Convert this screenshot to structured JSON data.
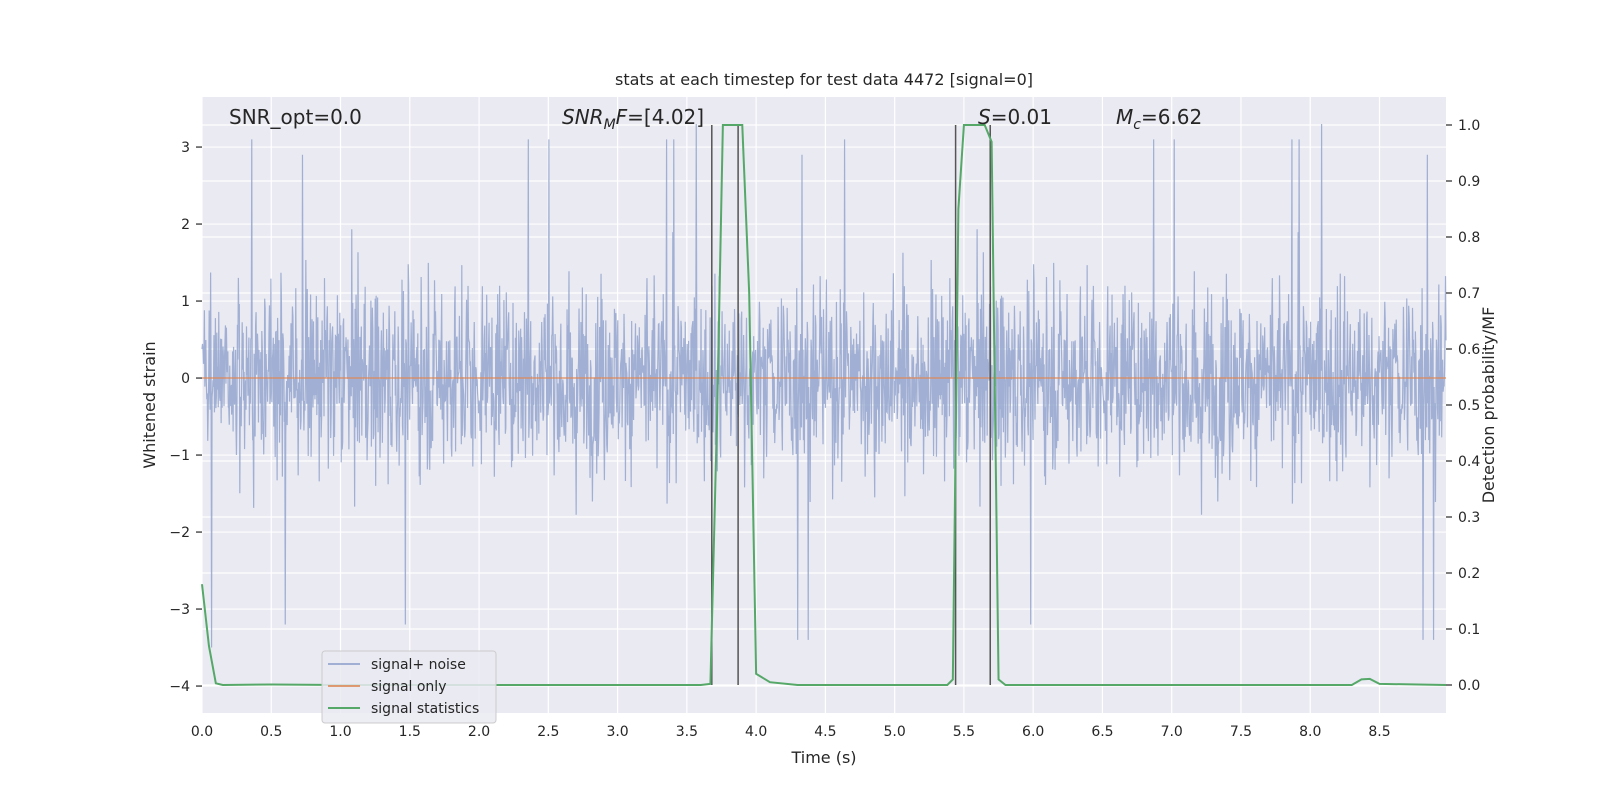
{
  "chart_data": {
    "type": "line",
    "title": "stats at each timestep for test data 4472 [signal=0]",
    "xlabel": "Time (s)",
    "ylabel_left": "Whitened strain",
    "ylabel_right": "Detection probability/MF",
    "xlim": [
      0.0,
      8.98
    ],
    "ylim_left": [
      -4.35,
      3.65
    ],
    "ylim_right": [
      -0.05,
      1.05
    ],
    "grid": true,
    "legend_position": "lower-left",
    "x_ticks": [
      "0.0",
      "0.5",
      "1.0",
      "1.5",
      "2.0",
      "2.5",
      "3.0",
      "3.5",
      "4.0",
      "4.5",
      "5.0",
      "5.5",
      "6.0",
      "6.5",
      "7.0",
      "7.5",
      "8.0",
      "8.5"
    ],
    "y_left_ticks": [
      "3",
      "2",
      "1",
      "0",
      "−1",
      "−2",
      "−3",
      "−4"
    ],
    "y_right_ticks": [
      "1.0",
      "0.9",
      "0.8",
      "0.7",
      "0.6",
      "0.5",
      "0.4",
      "0.3",
      "0.2",
      "0.1",
      "0.0"
    ],
    "annotations": {
      "snr_opt": "SNR_opt=0.0",
      "snr_mf_sym": "SNR",
      "snr_mf_sub": "M",
      "snr_mf_mid": "F",
      "snr_mf_val": "=[4.02]",
      "s_sym": "S",
      "s_val": "=0.01",
      "mc_sym": "M",
      "mc_sub": "c",
      "mc_val": "=6.62"
    },
    "series": [
      {
        "name": "signal+ noise",
        "color": "#8da0cb",
        "kind": "noise",
        "amplitude_envelope": [
          -2.0,
          2.0
        ],
        "spikes_high": [
          3.3,
          3.1,
          2.9,
          2.7
        ],
        "spikes_low": [
          -3.4,
          -3.5,
          -3.2,
          -4.0
        ]
      },
      {
        "name": "signal only",
        "color": "#dd8452",
        "kind": "constant",
        "y": [
          0.0,
          0.0
        ]
      },
      {
        "name": "signal statistics",
        "color": "#55a868",
        "kind": "line",
        "axis": "right",
        "x": [
          0.0,
          0.05,
          0.1,
          0.15,
          0.5,
          1.0,
          2.0,
          3.0,
          3.6,
          3.67,
          3.72,
          3.76,
          3.8,
          3.9,
          3.95,
          4.0,
          4.1,
          4.3,
          5.0,
          5.38,
          5.42,
          5.46,
          5.5,
          5.6,
          5.65,
          5.7,
          5.75,
          5.8,
          6.5,
          7.5,
          8.3,
          8.37,
          8.43,
          8.5,
          8.98
        ],
        "y": [
          0.18,
          0.07,
          0.003,
          0.0,
          0.001,
          0.0,
          0.0,
          0.0,
          0.0,
          0.002,
          0.5,
          1.0,
          1.0,
          1.0,
          0.7,
          0.02,
          0.005,
          0.0,
          0.0,
          0.0,
          0.01,
          0.85,
          1.0,
          1.0,
          1.0,
          0.97,
          0.01,
          0.0,
          0.0,
          0.0,
          0.0,
          0.01,
          0.011,
          0.002,
          0.0
        ]
      },
      {
        "name": "",
        "color": "#555555",
        "kind": "vlines",
        "x": [
          3.68,
          3.87,
          5.44,
          5.69
        ],
        "ymax": 1.0
      }
    ]
  }
}
